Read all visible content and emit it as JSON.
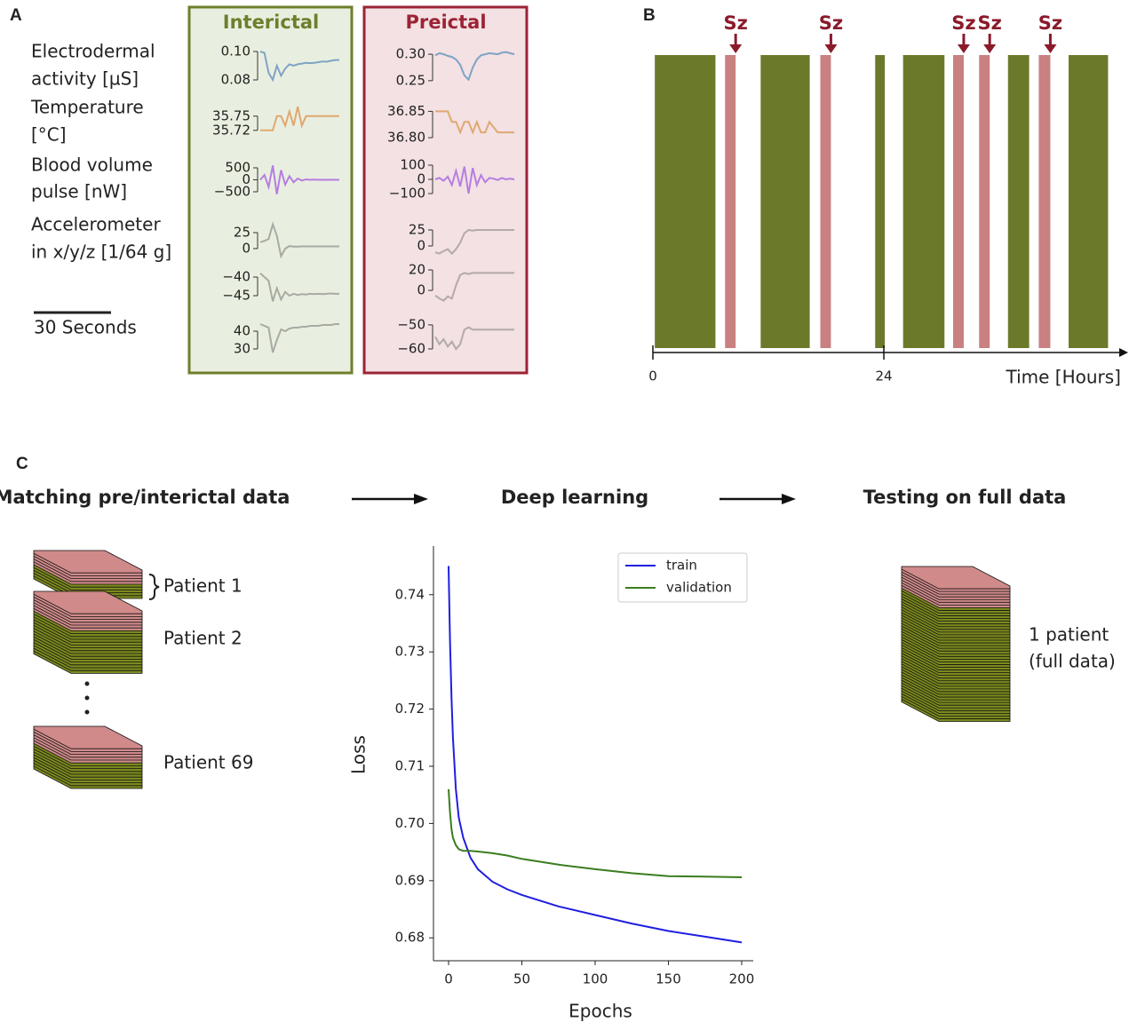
{
  "panel_a": {
    "label": "A",
    "signal_labels": [
      [
        "Electrodermal",
        "activity [µS]"
      ],
      [
        "Temperature",
        "[°C]"
      ],
      [
        "Blood volume",
        "pulse [nW]"
      ],
      [
        "Accelerometer",
        "in x/y/z [1/64 g]"
      ]
    ],
    "scale_bar_label": "30 Seconds",
    "conditions": [
      {
        "name": "Interictal",
        "color": "#6d7f2c",
        "background": "#e9efe0",
        "plots": [
          {
            "color": "#7fa3c5",
            "ylim": [
              0.075,
              0.10625
            ],
            "yticks": [
              {
                "value": 0.1,
                "label": "0.10"
              },
              0.08
            ],
            "values": [
              0.1,
              0.099,
              0.085,
              0.08,
              0.09,
              0.083,
              0.088,
              0.091,
              0.09,
              0.091,
              0.0915,
              0.092,
              0.0918,
              0.092,
              0.0925,
              0.093,
              0.0928,
              0.0935,
              0.094,
              0.094
            ]
          },
          {
            "color": "#e0a870",
            "ylim": [
              35.699,
              35.774
            ],
            "yticks": [
              35.75,
              35.72
            ],
            "values": [
              35.72,
              35.72,
              35.72,
              35.72,
              35.75,
              35.75,
              35.73,
              35.76,
              35.73,
              35.77,
              35.73,
              35.75,
              35.75,
              35.75,
              35.75,
              35.75,
              35.75,
              35.75,
              35.75,
              35.75
            ]
          },
          {
            "color": "#b57ee0",
            "ylim": [
              -722,
              833
            ],
            "yticks": [
              500,
              0,
              {
                "value": -500,
                "label": "−500"
              }
            ],
            "values": [
              0,
              200,
              -300,
              600,
              -600,
              400,
              -200,
              150,
              -100,
              50,
              -30,
              20,
              0,
              10,
              0,
              0,
              0,
              5,
              0,
              0
            ]
          },
          {
            "color": "#a8aaa4",
            "ylim": [
              -13.9,
              44.4
            ],
            "yticks": [
              25,
              0
            ],
            "values": [
              10,
              12,
              15,
              38,
              20,
              -12,
              0,
              4,
              3,
              3,
              3.5,
              3.5,
              3.5,
              3.5,
              3.5,
              3.5,
              3.5,
              3.5,
              3.5,
              3.5
            ]
          },
          {
            "color": "#a8aaa4",
            "ylim": [
              -47.14,
              -36.67
            ],
            "yticks": [
              {
                "value": -40,
                "label": "−40"
              },
              {
                "value": -45,
                "label": "−45"
              }
            ],
            "values": [
              -39,
              -40,
              -41,
              -46.5,
              -43,
              -46,
              -44,
              -45,
              -44.5,
              -44.8,
              -44.6,
              -44.7,
              -44.5,
              -44.6,
              -44.5,
              -44.6,
              -44.5,
              -44.4,
              -44.5,
              -44.5
            ]
          },
          {
            "color": "#a8aaa4",
            "ylim": [
              26.5,
              49.5
            ],
            "yticks": [
              40,
              30
            ],
            "values": [
              44,
              43,
              42,
              28,
              35,
              41,
              40,
              41.5,
              42,
              42,
              42.5,
              42.5,
              43,
              43,
              43,
              43.5,
              43.5,
              43.5,
              44,
              44
            ]
          }
        ]
      },
      {
        "name": "Preictal",
        "color": "#9b2335",
        "background": "#f3e1e3",
        "plots": [
          {
            "color": "#7fa3c5",
            "ylim": [
              0.238,
              0.322
            ],
            "yticks": [
              {
                "value": 0.3,
                "label": "0.30"
              },
              0.25
            ],
            "values": [
              0.298,
              0.302,
              0.3,
              0.297,
              0.295,
              0.29,
              0.28,
              0.26,
              0.252,
              0.275,
              0.29,
              0.298,
              0.3,
              0.302,
              0.301,
              0.3,
              0.303,
              0.304,
              0.302,
              0.3
            ]
          },
          {
            "color": "#e0a870",
            "ylim": [
              36.795,
              36.8625
            ],
            "yticks": [
              36.85,
              {
                "value": 36.8,
                "label": "36.80"
              }
            ],
            "values": [
              36.85,
              36.85,
              36.85,
              36.85,
              36.83,
              36.83,
              36.81,
              36.83,
              36.83,
              36.81,
              36.83,
              36.81,
              36.81,
              36.83,
              36.82,
              36.81,
              36.81,
              36.81,
              36.81,
              36.81
            ]
          },
          {
            "color": "#b57ee0",
            "ylim": [
              -125,
              137.5
            ],
            "yticks": [
              100,
              0,
              {
                "value": -100,
                "label": "−100"
              }
            ],
            "values": [
              0,
              10,
              -10,
              20,
              -40,
              60,
              -50,
              90,
              -100,
              80,
              -40,
              30,
              -20,
              10,
              5,
              -5,
              10,
              0,
              5,
              0
            ]
          },
          {
            "color": "#b3aaa6",
            "ylim": [
              -18.1,
              40.3
            ],
            "yticks": [
              25,
              0
            ],
            "values": [
              -10,
              -12,
              -8,
              -5,
              -12,
              -5,
              5,
              20,
              25,
              24,
              25,
              25,
              25,
              25,
              25,
              25,
              25,
              25,
              25,
              25
            ]
          },
          {
            "color": "#b3aaa6",
            "ylim": [
              -13,
              25.2
            ],
            "yticks": [
              20,
              0
            ],
            "values": [
              -5,
              -8,
              -10,
              -6,
              -8,
              5,
              15,
              17,
              16,
              17,
              17,
              17,
              17,
              17,
              17,
              17,
              17,
              17,
              17,
              17
            ]
          },
          {
            "color": "#b3aaa6",
            "ylim": [
              -62.6,
              -45.6
            ],
            "yticks": [
              {
                "value": -50,
                "label": "−50"
              },
              {
                "value": -60,
                "label": "−60"
              }
            ],
            "values": [
              -55,
              -58,
              -56,
              -59,
              -57,
              -60,
              -58,
              -52,
              -51,
              -52,
              -52,
              -52,
              -52,
              -52,
              -52,
              -52,
              -52,
              -52,
              -52,
              -52
            ]
          }
        ]
      }
    ]
  },
  "panel_b": {
    "label": "B",
    "seizure_label": "Sz",
    "interictal": [
      [
        0.2,
        6.5
      ],
      [
        11.2,
        16.3
      ],
      [
        23.1,
        24.1
      ],
      [
        26.0,
        30.3
      ],
      [
        36.9,
        39.1
      ],
      [
        43.2,
        47.3
      ]
    ],
    "preictal": [
      [
        7.5,
        8.6
      ],
      [
        17.4,
        18.5
      ],
      [
        31.2,
        32.3
      ],
      [
        33.9,
        35.0
      ],
      [
        40.1,
        41.3
      ]
    ],
    "interictal_color": "#6b7a2a",
    "preictal_color": "#c98080",
    "seizure_color": "#8b1a2b",
    "xlim": [
      0,
      47.5
    ],
    "xticks": [
      0,
      24
    ],
    "xlabel": "Time [Hours]"
  },
  "panel_c": {
    "label": "C",
    "steps": [
      "Matching pre/interictal data",
      "Deep learning",
      "Testing on full data"
    ],
    "patients": [
      "Patient 1",
      "Patient 2",
      "Patient 69"
    ],
    "test_patient": [
      "1 patient",
      "(full data)"
    ]
  },
  "chart_data": {
    "type": "line",
    "xlabel": "Epochs",
    "ylabel": "Loss",
    "x": [
      0,
      1,
      2,
      3,
      5,
      7,
      10,
      15,
      20,
      30,
      40,
      50,
      75,
      100,
      125,
      150,
      175,
      200
    ],
    "series": [
      {
        "name": "train",
        "color": "#1f1fe0",
        "values": [
          0.745,
          0.732,
          0.722,
          0.715,
          0.706,
          0.701,
          0.6975,
          0.694,
          0.692,
          0.6898,
          0.6885,
          0.6875,
          0.6855,
          0.684,
          0.6825,
          0.6812,
          0.6802,
          0.6792
        ]
      },
      {
        "name": "validation",
        "color": "#3a7d1e",
        "values": [
          0.706,
          0.702,
          0.699,
          0.6975,
          0.6962,
          0.6955,
          0.6952,
          0.6952,
          0.6951,
          0.6948,
          0.6944,
          0.6938,
          0.6928,
          0.692,
          0.6913,
          0.6908,
          0.6907,
          0.6906
        ]
      }
    ],
    "xlim": [
      -10.3,
      207.9
    ],
    "ylim": [
      0.676,
      0.7485
    ],
    "xticks": [
      0,
      50,
      100,
      150,
      200
    ],
    "yticks": [
      0.68,
      0.69,
      {
        "value": 0.7,
        "label": "0.70"
      },
      0.71,
      0.72,
      0.73,
      0.74
    ]
  }
}
